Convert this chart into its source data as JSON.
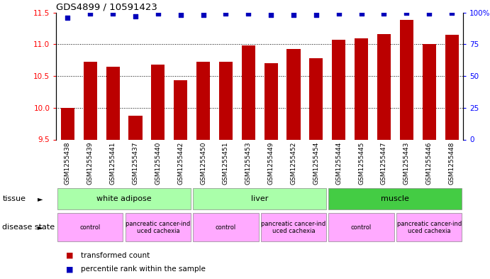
{
  "title": "GDS4899 / 10591423",
  "samples": [
    "GSM1255438",
    "GSM1255439",
    "GSM1255441",
    "GSM1255437",
    "GSM1255440",
    "GSM1255442",
    "GSM1255450",
    "GSM1255451",
    "GSM1255453",
    "GSM1255449",
    "GSM1255452",
    "GSM1255454",
    "GSM1255444",
    "GSM1255445",
    "GSM1255447",
    "GSM1255443",
    "GSM1255446",
    "GSM1255448"
  ],
  "bar_values": [
    10.0,
    10.73,
    10.65,
    9.88,
    10.68,
    10.43,
    10.72,
    10.73,
    10.98,
    10.7,
    10.93,
    10.78,
    11.07,
    11.09,
    11.16,
    11.38,
    11.0,
    11.15
  ],
  "dot_values": [
    96,
    99,
    99,
    97,
    99,
    98,
    98,
    99,
    99,
    98,
    98,
    98,
    99,
    99,
    99,
    100,
    99,
    100
  ],
  "ylim_left": [
    9.5,
    11.5
  ],
  "ylim_right": [
    0,
    100
  ],
  "bar_color": "#bb0000",
  "dot_color": "#0000bb",
  "tissue_colors": [
    "#aaffaa",
    "#aaffaa",
    "#44cc44"
  ],
  "tissue_labels": [
    "white adipose",
    "liver",
    "muscle"
  ],
  "tissue_ranges": [
    [
      0,
      6
    ],
    [
      6,
      12
    ],
    [
      12,
      18
    ]
  ],
  "disease_color": "#ffaaff",
  "disease_labels": [
    "control",
    "pancreatic cancer-ind\nuced cachexia",
    "control",
    "pancreatic cancer-ind\nuced cachexia",
    "control",
    "pancreatic cancer-ind\nuced cachexia"
  ],
  "disease_ranges": [
    [
      0,
      3
    ],
    [
      3,
      6
    ],
    [
      6,
      9
    ],
    [
      9,
      12
    ],
    [
      12,
      15
    ],
    [
      15,
      18
    ]
  ],
  "right_ticks": [
    0,
    25,
    50,
    75,
    100
  ],
  "right_tick_labels": [
    "0",
    "25",
    "50",
    "75",
    "100%"
  ],
  "left_ticks": [
    9.5,
    10.0,
    10.5,
    11.0,
    11.5
  ],
  "legend_bar_label": "transformed count",
  "legend_dot_label": "percentile rank within the sample",
  "xlabel_tissue": "tissue",
  "xlabel_disease": "disease state"
}
